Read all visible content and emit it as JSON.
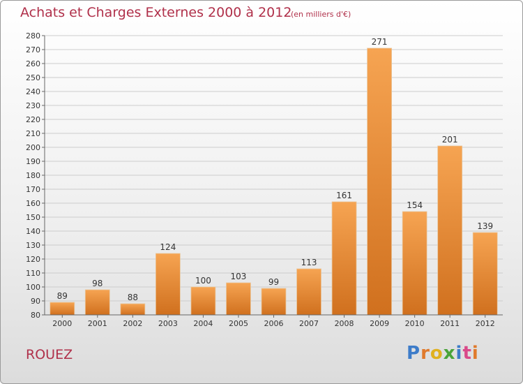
{
  "header": {
    "title": "Achats et Charges Externes 2000 à 2012",
    "subtitle": "(en milliers d'€)"
  },
  "footer": {
    "commune": "ROUEZ",
    "logo": "Proxiti"
  },
  "colors": {
    "title": "#b0304a",
    "bar_top": "#f6a452",
    "bar_bottom": "#d0701e",
    "grid": "#cccccc"
  },
  "chart_data": {
    "type": "bar",
    "title": "Achats et Charges Externes 2000 à 2012",
    "subtitle": "(en milliers d'€)",
    "categories": [
      "2000",
      "2001",
      "2002",
      "2003",
      "2004",
      "2005",
      "2006",
      "2007",
      "2008",
      "2009",
      "2010",
      "2011",
      "2012"
    ],
    "values": [
      89,
      98,
      88,
      124,
      100,
      103,
      99,
      113,
      161,
      271,
      154,
      201,
      139
    ],
    "data_labels": [
      "89",
      "98",
      "88",
      "124",
      "100",
      "103",
      "99",
      "113",
      "161",
      "271",
      "154",
      "201",
      "139"
    ],
    "yticks": [
      "80",
      "90",
      "100",
      "110",
      "120",
      "130",
      "140",
      "150",
      "160",
      "170",
      "180",
      "190",
      "200",
      "210",
      "220",
      "230",
      "240",
      "250",
      "260",
      "270",
      "280"
    ],
    "ylim": [
      80,
      280
    ],
    "ystep": 10,
    "grid": true,
    "legend": "none"
  }
}
